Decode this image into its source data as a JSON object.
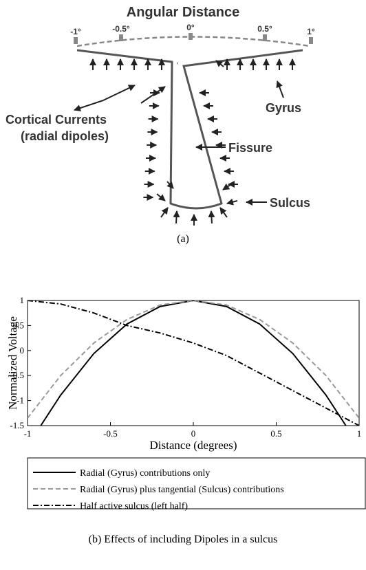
{
  "diagram": {
    "title": "Angular Distance",
    "scale_labels": [
      "-1°",
      "-0.5°",
      "0°",
      "0.5°",
      "1°"
    ],
    "labels": {
      "currents": [
        "Cortical Currents",
        "(radial dipoles)"
      ],
      "gyrus": "Gyrus",
      "fissure": "Fissure",
      "sulcus": "Sulcus"
    },
    "caption": "(a)"
  },
  "chart_data": {
    "type": "line",
    "xlabel": "Distance (degrees)",
    "ylabel": "Normalized Voltage",
    "caption": "(b) Effects of including Dipoles in a sulcus",
    "xlim": [
      -1,
      1
    ],
    "ylim": [
      -1.5,
      1
    ],
    "xticks": [
      -1,
      -0.5,
      0,
      0.5,
      1
    ],
    "yticks": [
      -1.5,
      -1,
      -0.5,
      0,
      0.5,
      1
    ],
    "series": [
      {
        "name": "Radial (Gyrus) contributions only",
        "color": "#000000",
        "dash": "solid",
        "x": [
          -0.92,
          -0.8,
          -0.6,
          -0.4,
          -0.2,
          0,
          0.2,
          0.4,
          0.6,
          0.8,
          0.92
        ],
        "values": [
          -1.5,
          -0.89,
          -0.06,
          0.53,
          0.88,
          1,
          0.88,
          0.53,
          -0.06,
          -0.89,
          -1.5
        ]
      },
      {
        "name": "Radial (Gyrus) plus tangential (Sulcus) contributions",
        "color": "#999999",
        "dash": "dashed",
        "x": [
          -1,
          -0.8,
          -0.6,
          -0.4,
          -0.2,
          0,
          0.2,
          0.4,
          0.6,
          0.8,
          1
        ],
        "values": [
          -1.35,
          -0.5,
          0.15,
          0.62,
          0.91,
          1,
          0.91,
          0.62,
          0.15,
          -0.5,
          -1.35
        ]
      },
      {
        "name": "Half active sulcus (left half)",
        "color": "#000000",
        "dash": "dashdot",
        "x": [
          -1,
          -0.8,
          -0.6,
          -0.4,
          -0.2,
          0,
          0.2,
          0.4,
          0.6,
          0.8,
          1
        ],
        "values": [
          1,
          0.93,
          0.75,
          0.5,
          0.35,
          0.15,
          -0.1,
          -0.45,
          -0.8,
          -1.15,
          -1.5
        ]
      }
    ]
  }
}
